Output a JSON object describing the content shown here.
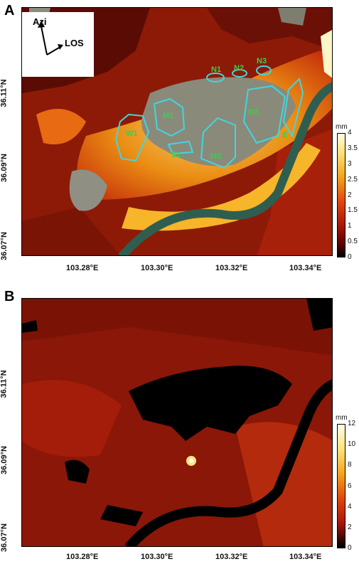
{
  "panels": [
    {
      "letter": "A",
      "colorbar": {
        "unit": "mm",
        "ticks": [
          "4",
          "3.5",
          "3",
          "2.5",
          "2",
          "1.5",
          "1",
          "0.5",
          "0"
        ]
      },
      "direction_box": {
        "azi_label": "Azi",
        "los_label": "LOS"
      },
      "zones": [
        "N1",
        "N2",
        "N3",
        "M1",
        "M3",
        "W1",
        "S1",
        "M2",
        "E"
      ]
    },
    {
      "letter": "B",
      "colorbar": {
        "unit": "mm",
        "ticks": [
          "12",
          "10",
          "8",
          "6",
          "4",
          "2",
          "0"
        ]
      }
    }
  ],
  "axes": {
    "y_ticks": [
      "36.11°N",
      "36.09°N",
      "36.07°N"
    ],
    "x_ticks": [
      "103.28°E",
      "103.30°E",
      "103.32°E",
      "103.34°E"
    ]
  },
  "colors": {
    "zone_outline": "#3fd7e0",
    "zone_label": "#36d14a",
    "river": "#2f5e50"
  }
}
